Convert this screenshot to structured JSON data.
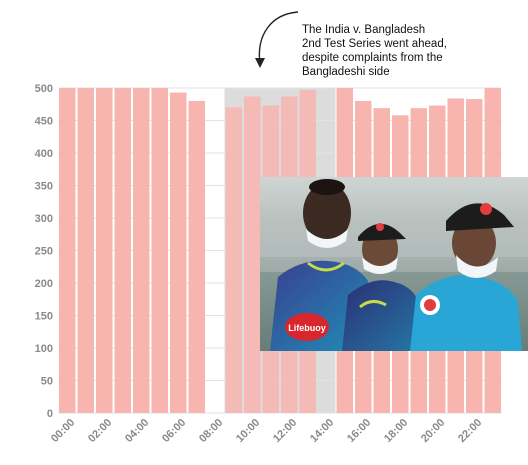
{
  "chart_data": {
    "type": "bar",
    "categories": [
      "00:00",
      "01:00",
      "02:00",
      "03:00",
      "04:00",
      "05:00",
      "06:00",
      "07:00",
      "08:00",
      "09:00",
      "10:00",
      "11:00",
      "12:00",
      "13:00",
      "14:00",
      "15:00",
      "16:00",
      "17:00",
      "18:00",
      "19:00",
      "20:00",
      "21:00",
      "22:00",
      "23:00"
    ],
    "x_tick_labels": [
      "00:00",
      "02:00",
      "04:00",
      "06:00",
      "08:00",
      "10:00",
      "12:00",
      "14:00",
      "16:00",
      "18:00",
      "20:00",
      "22:00"
    ],
    "values": [
      500,
      500,
      500,
      500,
      500,
      500,
      493,
      480,
      null,
      470,
      487,
      473,
      487,
      497,
      null,
      500,
      480,
      469,
      458,
      469,
      473,
      484,
      483,
      500
    ],
    "ylim": [
      0,
      500
    ],
    "y_ticks": [
      0,
      50,
      100,
      150,
      200,
      250,
      300,
      350,
      400,
      450,
      500
    ],
    "highlight_range": [
      "09:00",
      "14:00"
    ],
    "title": "",
    "xlabel": "",
    "ylabel": "",
    "grid": true,
    "colors": {
      "bar": "#f8b4ae",
      "highlight": "#dcdcdc",
      "grid": "#e3e3e3",
      "tick": "#8a8a8a"
    }
  },
  "annotation": {
    "lines": [
      "The India v. Bangladesh",
      "2nd Test Series went ahead,",
      "despite complaints from the",
      "Bangladeshi side"
    ]
  },
  "photo": {
    "caption_text": "Lifebuoy",
    "description_icons": [
      "player-icon",
      "cap-icon"
    ]
  }
}
